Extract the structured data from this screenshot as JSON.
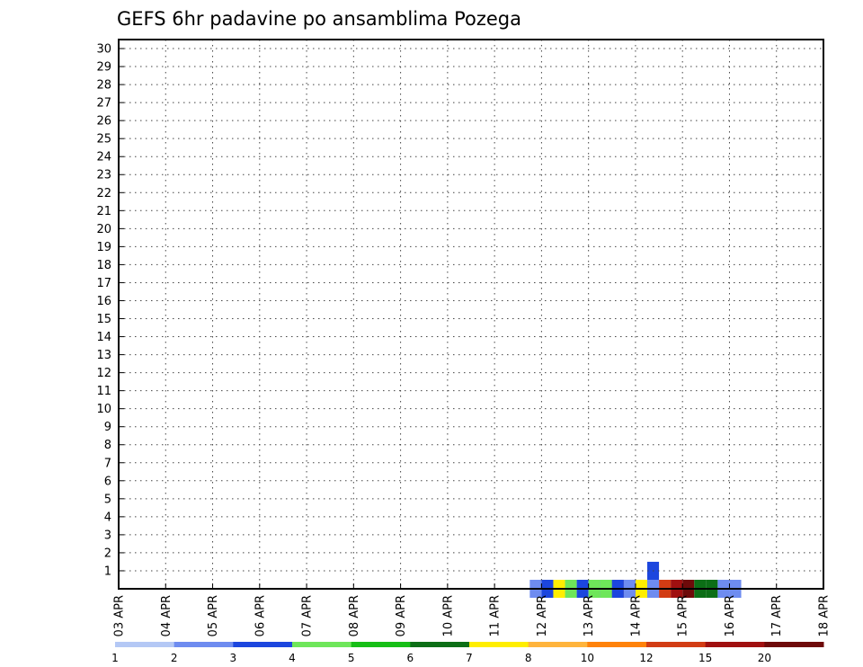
{
  "chart_data": {
    "type": "heatmap",
    "title": "GEFS 6hr padavine po ansamblima Pozega",
    "xlabel": "",
    "ylabel": "",
    "x_ticks": [
      "03 APR",
      "04 APR",
      "05 APR",
      "06 APR",
      "07 APR",
      "08 APR",
      "09 APR",
      "10 APR",
      "11 APR",
      "12 APR",
      "13 APR",
      "14 APR",
      "15 APR",
      "16 APR",
      "17 APR",
      "18 APR"
    ],
    "y_ticks": [
      "1",
      "2",
      "3",
      "4",
      "5",
      "6",
      "7",
      "8",
      "9",
      "10",
      "11",
      "12",
      "13",
      "14",
      "15",
      "16",
      "17",
      "18",
      "19",
      "20",
      "21",
      "22",
      "23",
      "24",
      "25",
      "26",
      "27",
      "28",
      "29",
      "30"
    ],
    "xlim": [
      0,
      60
    ],
    "ylim": [
      0,
      30
    ],
    "grid": true,
    "legend": {
      "placement": "bottom",
      "labels": [
        "1",
        "2",
        "3",
        "4",
        "5",
        "6",
        "7",
        "8",
        "10",
        "12",
        "15",
        "20"
      ],
      "colors": [
        "#b4c8f5",
        "#6e8cf0",
        "#1c46de",
        "#6ee65a",
        "#16be16",
        "#0c6e16",
        "#ffee00",
        "#ffb43c",
        "#ff820a",
        "#d23c14",
        "#a01010",
        "#6e0a0a"
      ]
    },
    "cells": [
      [
        45.5,
        0,
        8
      ],
      [
        46.5,
        0,
        9
      ],
      [
        47.5,
        0,
        10
      ],
      [
        48.5,
        0,
        11
      ],
      [
        49.5,
        0,
        5
      ],
      [
        50.5,
        0,
        5
      ],
      [
        51.5,
        0,
        1
      ],
      [
        52.5,
        0,
        1
      ],
      [
        44.5,
        0,
        1
      ],
      [
        45.5,
        1,
        2
      ],
      [
        41.5,
        0,
        2
      ],
      [
        42.5,
        0,
        10
      ],
      [
        43.5,
        0,
        10
      ],
      [
        44.5,
        0,
        6
      ],
      [
        45.5,
        0,
        1
      ],
      [
        38.5,
        0,
        3
      ],
      [
        39.5,
        0,
        2
      ],
      [
        40.5,
        0,
        3
      ],
      [
        41.5,
        0,
        3
      ],
      [
        42.5,
        0,
        2
      ],
      [
        43.5,
        0,
        1
      ],
      [
        35.5,
        0,
        1
      ],
      [
        36.5,
        0,
        2
      ],
      [
        37.5,
        0,
        6
      ]
    ]
  }
}
